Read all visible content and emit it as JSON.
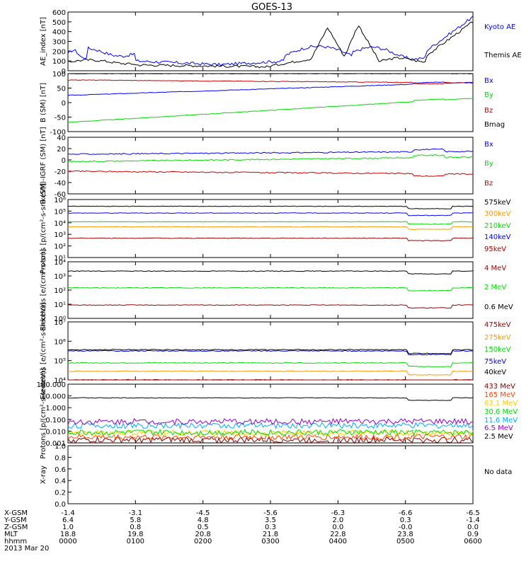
{
  "title": "GOES-13",
  "colors": {
    "black": "#000000",
    "blue": "#0000ff",
    "red": "#cc0000",
    "green": "#00dd00",
    "orange": "#ff9900",
    "darkred": "#990000",
    "yellow": "#ffcc00",
    "cyan": "#00aaff",
    "purple": "#9900cc",
    "maroon": "#800000",
    "orangered": "#ff4400"
  },
  "chart_data": [
    {
      "type": "line",
      "ylabel": "AE_index [nT]",
      "ylim": [
        0,
        600
      ],
      "yticks": [
        "0",
        "100",
        "200",
        "300",
        "400",
        "500",
        "600"
      ],
      "series": [
        {
          "name": "Kyoto AE",
          "color": "blue",
          "shape": "ae_kyoto"
        },
        {
          "name": "Themis AE",
          "color": "black",
          "shape": "ae_themis"
        }
      ]
    },
    {
      "type": "line",
      "ylabel": "B (SM) [nT]",
      "ylim": [
        -100,
        100
      ],
      "yticks": [
        "-100",
        "-50",
        "0",
        "50",
        "100"
      ],
      "series": [
        {
          "name": "Bx",
          "color": "blue",
          "from": 25,
          "to": 70
        },
        {
          "name": "By",
          "color": "green",
          "from": -68,
          "to": 15
        },
        {
          "name": "Bz",
          "color": "red",
          "from": 78,
          "to": 68
        },
        {
          "name": "Bmag",
          "color": "black",
          "from": 100,
          "to": 100
        }
      ]
    },
    {
      "type": "line",
      "ylabel": "B (SM)-IGRF (SM) [nT]",
      "ylim": [
        -60,
        40
      ],
      "yticks": [
        "-60",
        "-40",
        "-20",
        "0",
        "20",
        "40"
      ],
      "series": [
        {
          "name": "Bx",
          "color": "blue",
          "from": 10,
          "to": 15
        },
        {
          "name": "By",
          "color": "green",
          "from": -3,
          "to": 5
        },
        {
          "name": "Bz",
          "color": "red",
          "from": -20,
          "to": -25
        }
      ]
    },
    {
      "type": "line",
      "ylabel": "Protons [p/(cm²-s-sr-keV)]",
      "ylog": true,
      "ylim": [
        1,
        1000000
      ],
      "yticks": [
        "10¹",
        "10²",
        "10³",
        "10⁴",
        "10⁵",
        "10⁶"
      ],
      "series": [
        {
          "name": "575keV",
          "color": "black",
          "level": 200000
        },
        {
          "name": "300keV",
          "color": "orange",
          "level": 1500
        },
        {
          "name": "210keV",
          "color": "green",
          "level": 5000
        },
        {
          "name": "140keV",
          "color": "blue",
          "level": 40000
        },
        {
          "name": "95keV",
          "color": "darkred",
          "level": 100
        }
      ]
    },
    {
      "type": "line",
      "ylabel": "Electrons [e/(cm²-s-sr)]",
      "ylog": true,
      "ylim": [
        1,
        100000
      ],
      "yticks": [
        "10⁰",
        "10¹",
        "10²",
        "10³",
        "10⁴"
      ],
      "series": [
        {
          "name": "4 MeV",
          "color": "darkred",
          "level": 15
        },
        {
          "name": "2 MeV",
          "color": "green",
          "level": 500
        },
        {
          "name": "0.6 MeV",
          "color": "black",
          "level": 15000
        }
      ]
    },
    {
      "type": "line",
      "ylabel": "Electrons [e/(cm²-s-sr-keV)]",
      "ylog": true,
      "ylim": [
        10000,
        100000000
      ],
      "yticks": [
        "10⁴",
        "10⁵",
        "10⁶",
        "10⁷"
      ],
      "series": [
        {
          "name": "475keV",
          "color": "darkred",
          "level": 10000
        },
        {
          "name": "275keV",
          "color": "orange",
          "level": 40000
        },
        {
          "name": "150keV",
          "color": "green",
          "level": 150000
        },
        {
          "name": "75keV",
          "color": "blue",
          "level": 1000000
        },
        {
          "name": "40keV",
          "color": "black",
          "level": 1200000
        }
      ]
    },
    {
      "type": "line",
      "ylabel": "Protons [p/(cm²-s-sr-keV)]",
      "ylog": true,
      "ylim": [
        0.001,
        1000
      ],
      "yticks": [
        "0.001",
        "0.010",
        "0.100",
        "1.000",
        "10.000",
        "100.000"
      ],
      "series": [
        {
          "name": "433 MeV",
          "color": "maroon",
          "level": 0.002
        },
        {
          "name": "165 MeV",
          "color": "orangered",
          "level": 0.004
        },
        {
          "name": "63.1 MeV",
          "color": "yellow",
          "level": 0.01
        },
        {
          "name": "30.6 MeV",
          "color": "green",
          "level": 0.012
        },
        {
          "name": "11.6 MeV",
          "color": "cyan",
          "level": 0.06
        },
        {
          "name": "6.5 MeV",
          "color": "purple",
          "level": 0.15
        },
        {
          "name": "2.5 MeV",
          "color": "black",
          "level": 40
        }
      ]
    },
    {
      "type": "line",
      "ylabel": "X-ray",
      "ylim": [
        0,
        1
      ],
      "yticks": [
        "0.0",
        "0.2",
        "0.4",
        "0.6",
        "0.8",
        "1.0"
      ],
      "series": [],
      "note": "No data"
    }
  ],
  "ephemeris": {
    "rows": [
      {
        "label": "X-GSM",
        "values": [
          "-1.4",
          "-3.1",
          "-4.5",
          "-5.6",
          "-6.3",
          "-6.6",
          "-6.5"
        ]
      },
      {
        "label": "Y-GSM",
        "values": [
          "6.4",
          "5.8",
          "4.8",
          "3.5",
          "2.0",
          "0.3",
          "-1.4"
        ]
      },
      {
        "label": "Z-GSM",
        "values": [
          "1.0",
          "0.8",
          "0.5",
          "0.3",
          "0.0",
          "-0.0",
          "0.0"
        ]
      },
      {
        "label": "MLT",
        "values": [
          "18.8",
          "19.8",
          "20.8",
          "21.8",
          "22.8",
          "23.8",
          "0.9"
        ]
      },
      {
        "label": "hhmm",
        "values": [
          "0000",
          "0100",
          "0200",
          "0300",
          "0400",
          "0500",
          "0600"
        ]
      }
    ],
    "date": "2013 Mar 20"
  }
}
